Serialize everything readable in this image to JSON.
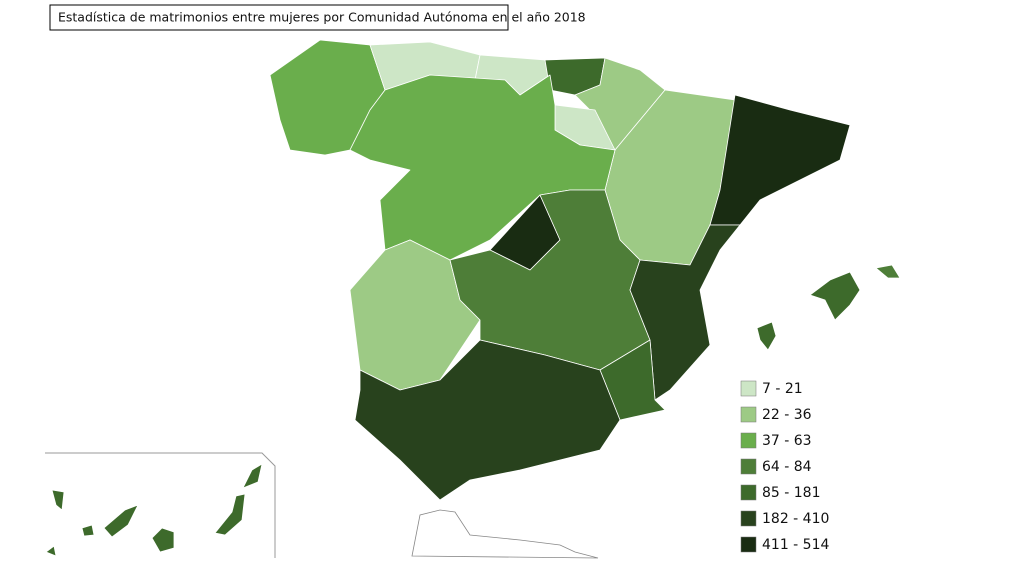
{
  "title": "Estadística de matrimonios entre mujeres por Comunidad Autónoma en el año 2018",
  "legend": [
    {
      "label": "7 - 21",
      "color": "#cde6c6"
    },
    {
      "label": "22 - 36",
      "color": "#9dca85"
    },
    {
      "label": "37 - 63",
      "color": "#6aae4c"
    },
    {
      "label": "64 - 84",
      "color": "#4e7e38"
    },
    {
      "label": "85 - 181",
      "color": "#3d6a2b"
    },
    {
      "label": "182 - 410",
      "color": "#28421d"
    },
    {
      "label": "411 - 514",
      "color": "#192c12"
    }
  ]
}
